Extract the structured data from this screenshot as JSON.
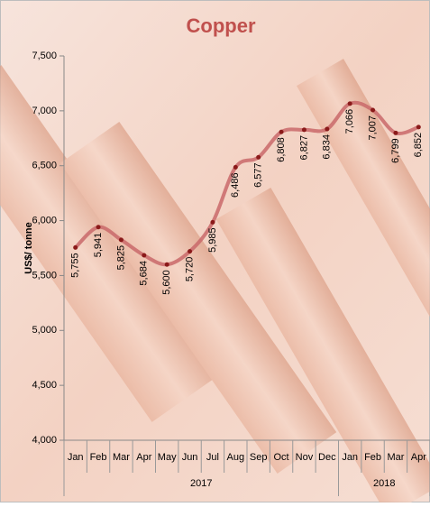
{
  "chart_data": {
    "type": "line",
    "title": "Copper",
    "y_label": "US$/ tonne",
    "categories": [
      "Jan",
      "Feb",
      "Mar",
      "Apr",
      "May",
      "Jun",
      "Jul",
      "Aug",
      "Sep",
      "Oct",
      "Nov",
      "Dec",
      "Jan",
      "Feb",
      "Mar",
      "Apr"
    ],
    "category_groups": [
      {
        "label": "2017",
        "size": 12
      },
      {
        "label": "2018",
        "size": 4
      }
    ],
    "values": [
      5755,
      5941,
      5825,
      5684,
      5600,
      5720,
      5985,
      6486,
      6577,
      6808,
      6827,
      6834,
      7066,
      7007,
      6799,
      6852
    ],
    "value_labels": [
      "5,755",
      "5,941",
      "5,825",
      "5,684",
      "5,600",
      "5,720",
      "5,985",
      "6,486",
      "6,577",
      "6,808",
      "6,827",
      "6,834",
      "7,066",
      "7,007",
      "6,799",
      "6,852"
    ],
    "color": "#c9686a",
    "marker_color": "#8b1a1a",
    "ylim": [
      4000,
      7500
    ],
    "yticks": [
      {
        "value": 4000,
        "label": "4,000"
      },
      {
        "value": 4500,
        "label": "4,500"
      },
      {
        "value": 5000,
        "label": "5,000"
      },
      {
        "value": 5500,
        "label": "5,500"
      },
      {
        "value": 6000,
        "label": "6,000"
      },
      {
        "value": 6500,
        "label": "6,500"
      },
      {
        "value": 7000,
        "label": "7,000"
      },
      {
        "value": 7500,
        "label": "7,500"
      }
    ]
  }
}
